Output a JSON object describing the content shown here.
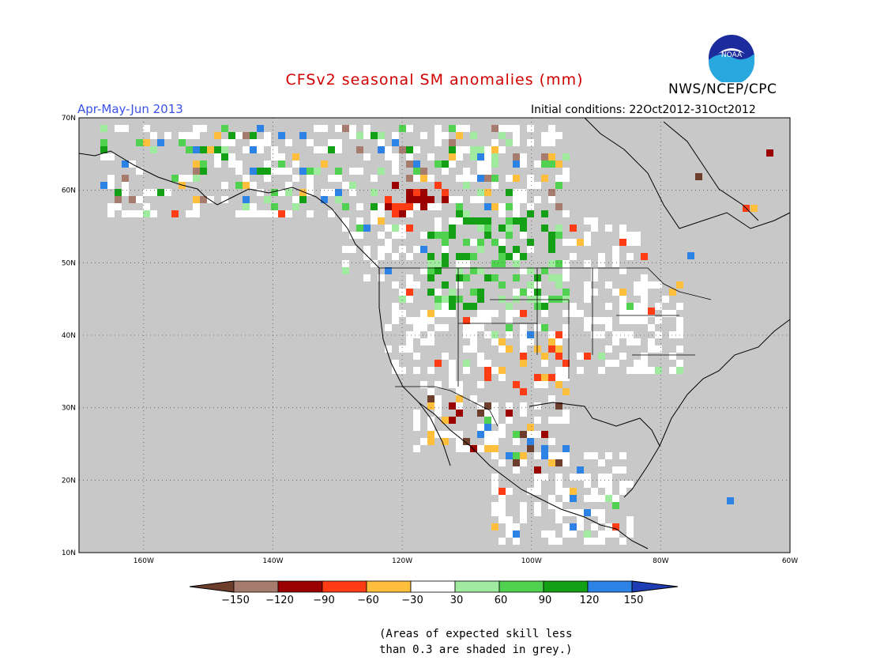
{
  "header": {
    "title": "CFSv2 seasonal SM anomalies (mm)",
    "organization": "NWS/NCEP/CPC",
    "period": "Apr-May-Jun 2013",
    "initial_conditions": "Initial conditions: 22Oct2012-31Oct2012",
    "logo_text": "NOAA"
  },
  "map": {
    "lat_labels": [
      "70N",
      "60N",
      "50N",
      "40N",
      "30N",
      "20N",
      "10N"
    ],
    "lon_labels": [
      "160W",
      "140W",
      "120W",
      "100W",
      "80W",
      "60W"
    ],
    "lat_range": [
      10,
      70
    ],
    "lon_range": [
      -170,
      -60
    ],
    "land_grey": "#c8c8c8",
    "ocean_grey": "#c8c8c8",
    "region_clusters": [
      {
        "region": "Central Canada/Northern Plains",
        "lon": -110,
        "lat": 52,
        "class": "+60 to +120"
      },
      {
        "region": "Alberta/BC",
        "lon": -118,
        "lat": 58,
        "class": "-90 to -150"
      },
      {
        "region": "Alaska",
        "lon": -145,
        "lat": 65,
        "class": "-30 to +90 mixed"
      },
      {
        "region": "Southern Plains",
        "lon": -102,
        "lat": 34,
        "class": "-30 to -60"
      },
      {
        "region": "Mexico",
        "lon": -107,
        "lat": 26,
        "class": "mixed"
      }
    ]
  },
  "colorbar": {
    "labels": [
      "-150",
      "-120",
      "-90",
      "-60",
      "-30",
      "30",
      "60",
      "90",
      "120",
      "150"
    ],
    "colors": [
      "#6e3e2c",
      "#a67c6e",
      "#9a0000",
      "#ff3c14",
      "#ffbe3c",
      "#ffffff",
      "#a0eba0",
      "#50d250",
      "#14a014",
      "#2d82e6",
      "#1e3cb4"
    ]
  },
  "note": {
    "line1": "(Areas of expected skill less",
    "line2": "than 0.3 are shaded in grey.)"
  }
}
